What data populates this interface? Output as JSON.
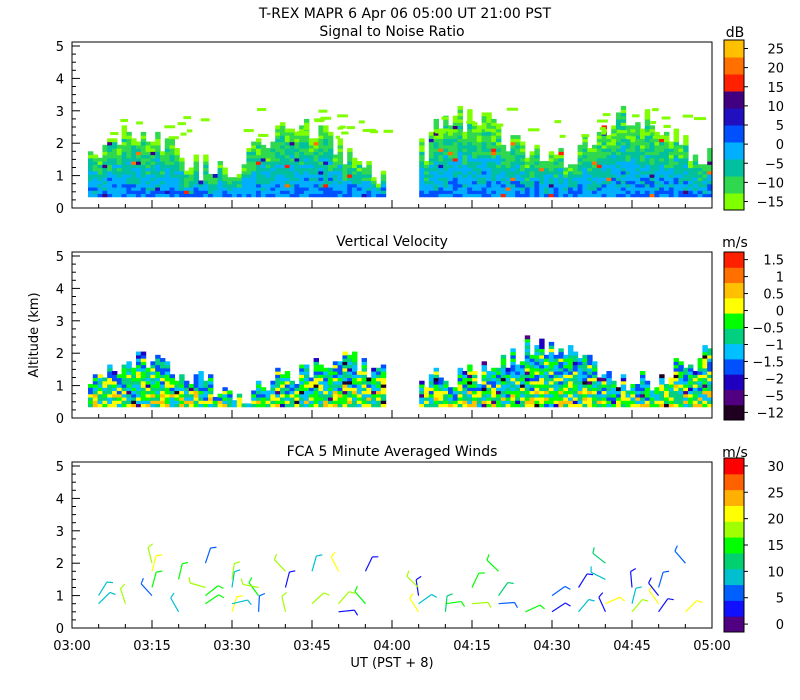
{
  "header": {
    "title": "T-REX   MAPR   6 Apr 06   05:00 UT   21:00   PST"
  },
  "colors": {
    "snr": [
      "#80ff00",
      "#30d850",
      "#00c0a0",
      "#00b0ff",
      "#0050ff",
      "#2010c0",
      "#400080",
      "#ff2000",
      "#ff7000",
      "#ffc000"
    ],
    "vel": [
      "#200020",
      "#500080",
      "#2000c0",
      "#0050ff",
      "#00c0ff",
      "#00d080",
      "#00ff00",
      "#ffff00",
      "#ffc000",
      "#ff7000",
      "#ff2000"
    ],
    "wind": [
      "#500080",
      "#1010ff",
      "#0060ff",
      "#00c0d0",
      "#00d070",
      "#00ff00",
      "#a0ff00",
      "#ffff00",
      "#ffb000",
      "#ff6000",
      "#ff0000"
    ]
  },
  "chart_data": [
    {
      "type": "heatmap",
      "title": "Signal to Noise Ratio",
      "xlabel": "",
      "ylabel": "",
      "xlim": [
        3.0,
        5.0
      ],
      "ylim": [
        0,
        5
      ],
      "yticks": [
        "0",
        "1",
        "2",
        "3",
        "4",
        "5"
      ],
      "data_gap": [
        3.98,
        4.08
      ],
      "colorbar": {
        "unit": "dB",
        "ticks": [
          "25",
          "20",
          "15",
          "10",
          "5",
          "0",
          "−5",
          "−10",
          "−15"
        ]
      }
    },
    {
      "type": "heatmap",
      "title": "Vertical Velocity",
      "xlabel": "",
      "ylabel": "Altitude (km)",
      "xlim": [
        3.0,
        5.0
      ],
      "ylim": [
        0,
        5
      ],
      "yticks": [
        "0",
        "1",
        "2",
        "3",
        "4",
        "5"
      ],
      "data_gap": [
        3.98,
        4.08
      ],
      "colorbar": {
        "unit": "m/s",
        "ticks": [
          "1.5",
          "1",
          "0.5",
          "0",
          "−0.5",
          "−1",
          "−1.5",
          "−2",
          "−5",
          "−12"
        ]
      }
    },
    {
      "type": "scatter",
      "title": "FCA 5 Minute Averaged Winds",
      "xlabel": "UT  (PST + 8)",
      "ylabel": "",
      "xlim": [
        3.0,
        5.0
      ],
      "ylim": [
        0,
        5
      ],
      "yticks": [
        "0",
        "1",
        "2",
        "3",
        "4",
        "5"
      ],
      "xticks": [
        "03:00",
        "03:15",
        "03:30",
        "03:45",
        "04:00",
        "04:15",
        "04:30",
        "04:45",
        "05:00"
      ],
      "times": [
        3.083,
        3.167,
        3.25,
        3.333,
        3.417,
        3.5,
        3.583,
        3.667,
        3.75,
        3.833,
        3.917,
        4.083,
        4.167,
        4.25,
        4.333,
        4.417,
        4.5,
        4.583,
        4.667,
        4.75,
        4.833,
        4.917
      ],
      "altitudes": [
        0.5,
        0.75,
        1.0,
        1.25,
        1.5,
        1.75,
        2.0
      ],
      "colorbar": {
        "unit": "m/s",
        "ticks": [
          "30",
          "25",
          "20",
          "15",
          "10",
          "5",
          "0"
        ]
      }
    }
  ]
}
